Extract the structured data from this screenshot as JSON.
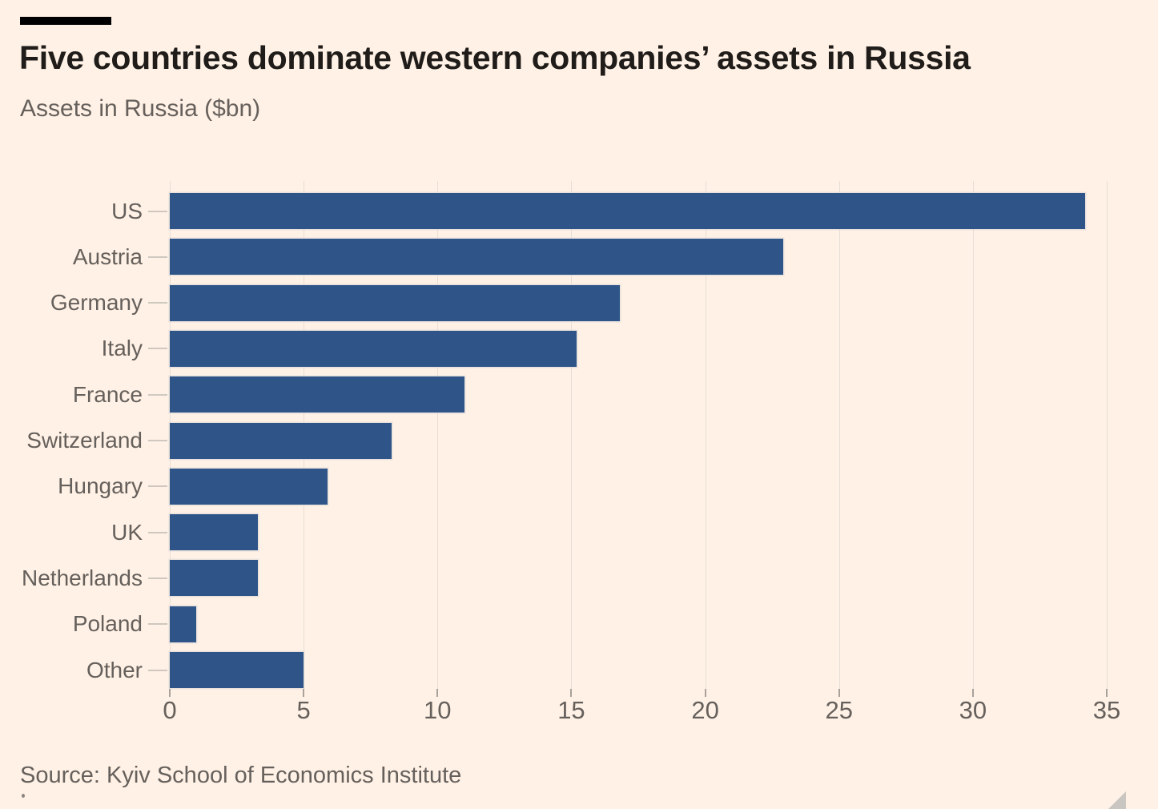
{
  "page": {
    "title": "Five countries dominate western companies’ assets in Russia",
    "subtitle": "Assets in Russia ($bn)",
    "source": "Source: Kyiv School of Economics Institute"
  },
  "colors": {
    "background": "#FFF1E5",
    "bar": "#2F5588",
    "title_text": "#1F1C1A",
    "muted_text": "#66605C",
    "gridline": "#E6DFD7",
    "axis_tick": "#A9A29B",
    "category_tick": "#CFC8C0",
    "resize_handle": "#C9C6C2"
  },
  "chart_data": {
    "type": "bar",
    "orientation": "horizontal",
    "title": "Five countries dominate western companies’ assets in Russia",
    "subtitle": "Assets in Russia ($bn)",
    "categories": [
      "US",
      "Austria",
      "Germany",
      "Italy",
      "France",
      "Switzerland",
      "Hungary",
      "UK",
      "Netherlands",
      "Poland",
      "Other"
    ],
    "values": [
      34.2,
      22.9,
      16.8,
      15.2,
      11.0,
      8.3,
      5.9,
      3.3,
      3.3,
      1.0,
      5.0
    ],
    "xlabel": "",
    "ylabel": "",
    "xlim": [
      0,
      35
    ],
    "x_ticks": [
      "0",
      "5",
      "10",
      "15",
      "20",
      "25",
      "30",
      "35"
    ],
    "grid": "vertical-gridlines-every-5",
    "legend": "none",
    "source": "Source: Kyiv School of Economics Institute"
  }
}
